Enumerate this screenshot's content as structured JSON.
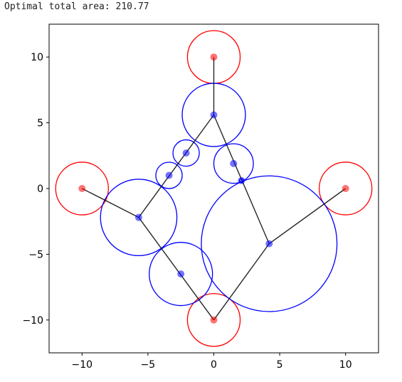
{
  "output_text": "Optimal total area: 210.77",
  "chart_data": {
    "type": "scatter",
    "title": "",
    "xlabel": "",
    "ylabel": "",
    "xlim": [
      -12.5,
      12.5
    ],
    "ylim": [
      -12.5,
      12.5
    ],
    "xticks": [
      -10,
      -5,
      0,
      5,
      10
    ],
    "yticks": [
      -10,
      -5,
      0,
      5,
      10
    ],
    "xtick_labels": [
      "−10",
      "−5",
      "0",
      "5",
      "10"
    ],
    "ytick_labels": [
      "−10",
      "−5",
      "0",
      "5",
      "10"
    ],
    "grid": false,
    "colors": {
      "terminal": "#ff0000",
      "steiner": "#0000ff",
      "edge": "#000000",
      "axes": "#000000"
    },
    "terminals": [
      {
        "x": 0,
        "y": 10,
        "r": 2.0
      },
      {
        "x": -10,
        "y": 0,
        "r": 2.0
      },
      {
        "x": 10,
        "y": 0,
        "r": 2.0
      },
      {
        "x": 0,
        "y": -10,
        "r": 2.0
      }
    ],
    "steiner_nodes": [
      {
        "x": 0.0,
        "y": 5.6,
        "r": 2.4
      },
      {
        "x": -2.1,
        "y": 2.7,
        "r": 1.0
      },
      {
        "x": -3.4,
        "y": 1.0,
        "r": 1.0
      },
      {
        "x": 1.5,
        "y": 1.9,
        "r": 1.5
      },
      {
        "x": 2.1,
        "y": 0.6,
        "r": 0.15
      },
      {
        "x": -5.7,
        "y": -2.2,
        "r": 2.9
      },
      {
        "x": 4.2,
        "y": -4.2,
        "r": 5.15
      },
      {
        "x": -2.5,
        "y": -6.5,
        "r": 2.4
      }
    ],
    "edges": [
      [
        [
          0,
          10
        ],
        [
          0,
          5.6
        ]
      ],
      [
        [
          0,
          5.6
        ],
        [
          -5.7,
          -2.2
        ]
      ],
      [
        [
          0,
          5.6
        ],
        [
          4.2,
          -4.2
        ]
      ],
      [
        [
          -10,
          0
        ],
        [
          -5.7,
          -2.2
        ]
      ],
      [
        [
          -5.7,
          -2.2
        ],
        [
          0,
          -10
        ]
      ],
      [
        [
          4.2,
          -4.2
        ],
        [
          0,
          -10
        ]
      ],
      [
        [
          4.2,
          -4.2
        ],
        [
          10,
          0
        ]
      ]
    ]
  }
}
